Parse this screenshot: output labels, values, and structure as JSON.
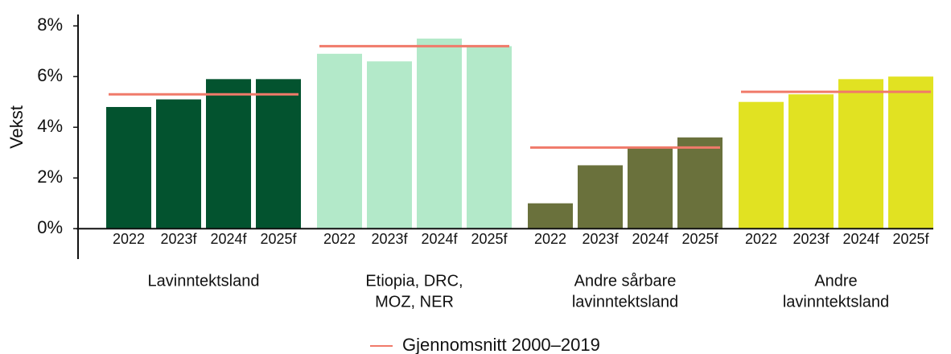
{
  "chart_data": {
    "type": "grouped_bar",
    "y_label": "Vekst",
    "ylim": [
      -1.2,
      8.45
    ],
    "yticks": [
      {
        "value": 0,
        "label": "0%"
      },
      {
        "value": 2,
        "label": "2%"
      },
      {
        "value": 4,
        "label": "4%"
      },
      {
        "value": 6,
        "label": "6%"
      },
      {
        "value": 8,
        "label": "8%"
      }
    ],
    "average_color": "#f07a6a",
    "legend": "Gjennomsnitt 2000–2019",
    "groups": [
      {
        "name": [
          "Lavinntektsland"
        ],
        "color": "#03532f",
        "categories": [
          "2022",
          "2023f",
          "2024f",
          "2025f"
        ],
        "values": [
          4.8,
          5.1,
          5.9,
          5.9
        ],
        "average": 5.3
      },
      {
        "name": [
          "Etiopia, DRC,",
          "MOZ, NER"
        ],
        "color": "#b3e9c9",
        "categories": [
          "2022",
          "2023f",
          "2024f",
          "2025f"
        ],
        "values": [
          6.9,
          6.6,
          7.5,
          7.2
        ],
        "average": 7.2
      },
      {
        "name": [
          "Andre sårbare",
          "lavinntektsland"
        ],
        "color": "#6a713c",
        "categories": [
          "2022",
          "2023f",
          "2024f",
          "2025f"
        ],
        "values": [
          1.0,
          2.5,
          3.2,
          3.6
        ],
        "average": 3.2
      },
      {
        "name": [
          "Andre",
          "lavinntektsland"
        ],
        "color": "#e1e222",
        "categories": [
          "2022",
          "2023f",
          "2024f",
          "2025f"
        ],
        "values": [
          5.0,
          5.3,
          5.9,
          6.0
        ],
        "average": 5.4
      }
    ]
  }
}
